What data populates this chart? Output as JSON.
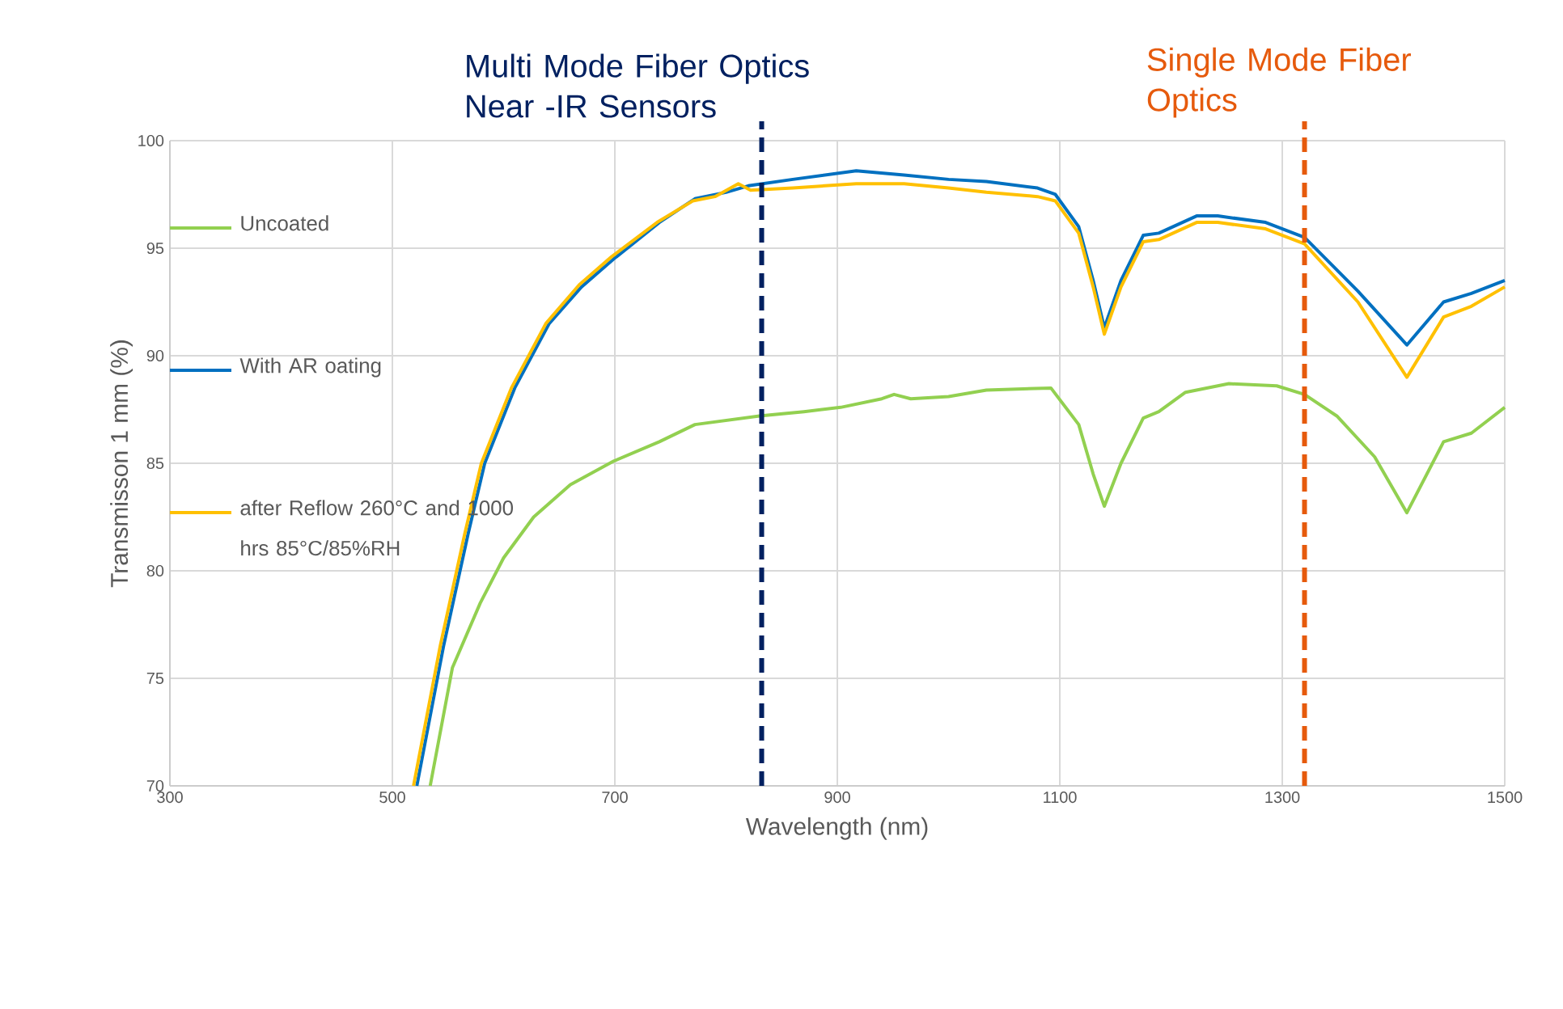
{
  "chart_data": {
    "type": "line",
    "xlabel": "Wavelength (nm)",
    "ylabel": "Transmisson 1 mm (%)",
    "xlim": [
      300,
      1500
    ],
    "xticks": [
      300,
      500,
      700,
      900,
      1100,
      1300,
      1500
    ],
    "ylim": [
      70,
      100
    ],
    "yticks": [
      70,
      75,
      80,
      85,
      90,
      95,
      100
    ],
    "grid": true,
    "legend": "left",
    "marker": "none",
    "line_style": "solid",
    "series": [
      {
        "name": "Uncoated",
        "color": "#92d050",
        "x": [
          534,
          554,
          579,
          600,
          627,
          660,
          699,
          740,
          772,
          830,
          870,
          903,
          940,
          951,
          966,
          1000,
          1034,
          1092,
          1117,
          1130,
          1140,
          1155,
          1175,
          1189,
          1213,
          1252,
          1295,
          1320,
          1349,
          1383,
          1412,
          1445,
          1470,
          1500
        ],
        "values": [
          70,
          75.5,
          78.5,
          80.6,
          82.5,
          84.0,
          85.1,
          86.0,
          86.8,
          87.2,
          87.4,
          87.6,
          88.0,
          88.2,
          88.0,
          88.1,
          88.4,
          88.5,
          86.8,
          84.5,
          83.0,
          85.0,
          87.1,
          87.4,
          88.3,
          88.7,
          88.6,
          88.2,
          87.2,
          85.3,
          82.7,
          86.0,
          86.4,
          87.6
        ]
      },
      {
        "name": "With AR oating",
        "color": "#0070c0",
        "x": [
          522,
          546,
          568,
          583,
          610,
          641,
          670,
          699,
          740,
          772,
          800,
          820,
          860,
          917,
          960,
          1000,
          1034,
          1080,
          1096,
          1117,
          1130,
          1140,
          1155,
          1175,
          1189,
          1223,
          1242,
          1285,
          1320,
          1368,
          1412,
          1445,
          1470,
          1500
        ],
        "values": [
          70,
          76.5,
          81.7,
          85.0,
          88.5,
          91.5,
          93.2,
          94.5,
          96.2,
          97.3,
          97.6,
          97.9,
          98.2,
          98.6,
          98.4,
          98.2,
          98.1,
          97.8,
          97.5,
          96.0,
          93.5,
          91.3,
          93.5,
          95.6,
          95.7,
          96.5,
          96.5,
          96.2,
          95.5,
          93.0,
          90.5,
          92.5,
          92.9,
          93.5
        ]
      },
      {
        "name": "after Reflow 260°C and 1000 hrs 85°C/85%RH",
        "color": "#ffc000",
        "x": [
          519,
          543,
          565,
          580,
          607,
          638,
          668,
          697,
          738,
          770,
          790,
          811,
          822,
          860,
          917,
          960,
          1000,
          1034,
          1080,
          1096,
          1117,
          1130,
          1140,
          1155,
          1175,
          1189,
          1223,
          1242,
          1285,
          1320,
          1368,
          1412,
          1445,
          1470,
          1500
        ],
        "values": [
          70,
          76.5,
          81.7,
          85.0,
          88.5,
          91.5,
          93.3,
          94.6,
          96.2,
          97.2,
          97.4,
          98.0,
          97.7,
          97.8,
          98.0,
          98.0,
          97.8,
          97.6,
          97.4,
          97.2,
          95.7,
          93.2,
          91.0,
          93.2,
          95.3,
          95.4,
          96.2,
          96.2,
          95.9,
          95.2,
          92.5,
          89.0,
          91.8,
          92.3,
          93.2
        ]
      }
    ],
    "ref_lines": [
      {
        "axis": "x",
        "value": 832,
        "label": "Multi Mode Fiber Optics Near -IR Sensors",
        "color": "#002060",
        "line_style": "dashed"
      },
      {
        "axis": "x",
        "value": 1320,
        "label": "Single Mode Fiber Optics",
        "color": "#e65a0c",
        "line_style": "dashed"
      }
    ]
  }
}
